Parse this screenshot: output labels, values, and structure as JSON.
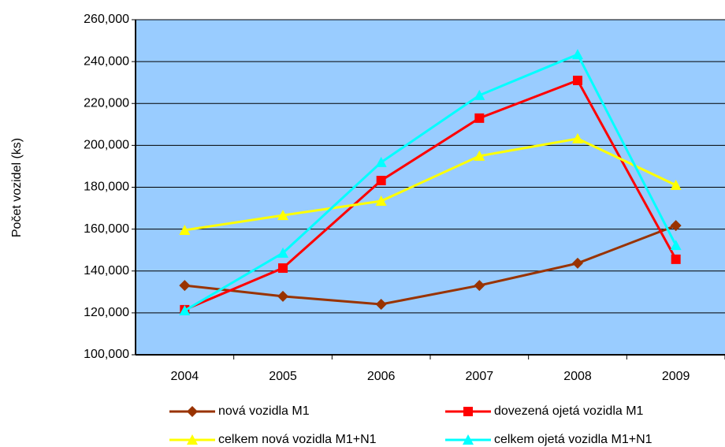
{
  "chart_data": {
    "type": "line",
    "y_label": "Počet vozidel (ks)",
    "categories": [
      "2004",
      "2005",
      "2006",
      "2007",
      "2008",
      "2009"
    ],
    "series": [
      {
        "name": "nová vozidla M1",
        "color": "#993300",
        "marker": "diamond",
        "values": [
          133100,
          127900,
          124100,
          133100,
          143700,
          161700
        ]
      },
      {
        "name": "dovezená ojetá vozidla M1",
        "color": "#ff0000",
        "marker": "square",
        "values": [
          121500,
          141400,
          183200,
          213000,
          231000,
          145600
        ]
      },
      {
        "name": "celkem nová vozidla M1+N1",
        "color": "#ffff00",
        "marker": "triangle",
        "values": [
          159500,
          166600,
          173400,
          194900,
          203200,
          181000
        ]
      },
      {
        "name": "celkem ojetá vozidla M1+N1",
        "color": "#00ffff",
        "marker": "triangle",
        "values": [
          121100,
          148600,
          191900,
          223900,
          243400,
          152300
        ]
      }
    ],
    "ylim": [
      100000,
      260000
    ],
    "yticks": [
      {
        "value": 100000,
        "label": "100,000"
      },
      {
        "value": 120000,
        "label": "120,000"
      },
      {
        "value": 140000,
        "label": "140,000"
      },
      {
        "value": 160000,
        "label": "160,000"
      },
      {
        "value": 180000,
        "label": "180,000"
      },
      {
        "value": 200000,
        "label": "200,000"
      },
      {
        "value": 220000,
        "label": "220,000"
      },
      {
        "value": 240000,
        "label": "240,000"
      },
      {
        "value": 260000,
        "label": "260,000"
      }
    ],
    "grid": true,
    "plot_background": "#99ccff"
  }
}
